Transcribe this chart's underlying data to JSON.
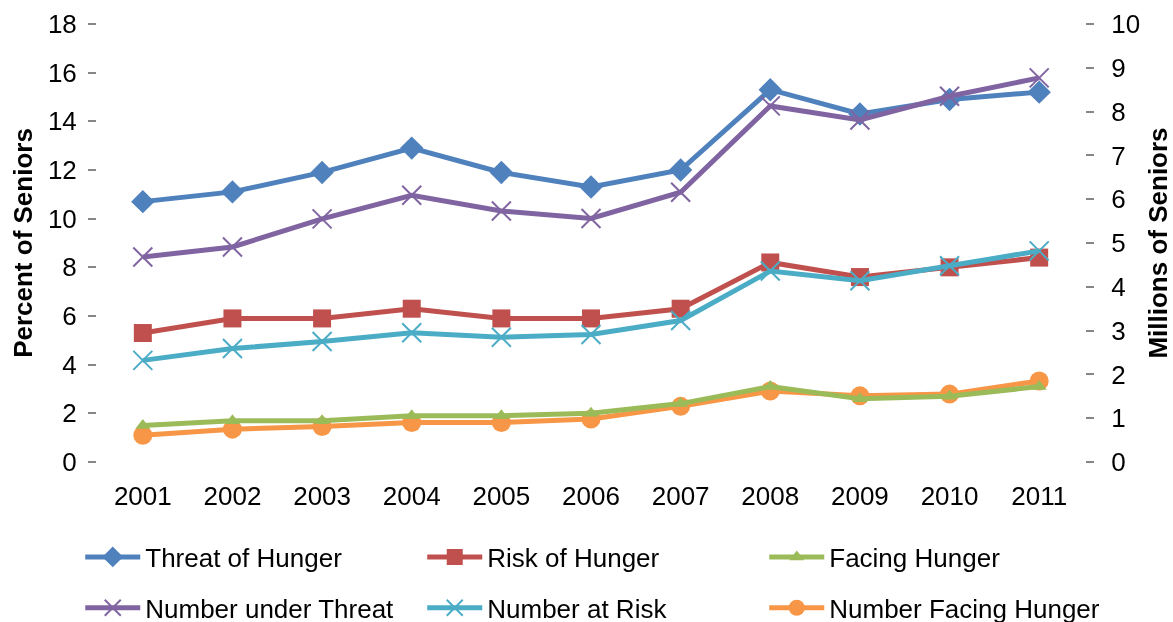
{
  "chart_data": {
    "type": "line",
    "ylabel": "Percent of Seniors",
    "y2label": "Millions of Seniors",
    "categories": [
      "2001",
      "2002",
      "2003",
      "2004",
      "2005",
      "2006",
      "2007",
      "2008",
      "2009",
      "2010",
      "2011"
    ],
    "ylim": [
      0,
      18
    ],
    "yticks": [
      0,
      2,
      4,
      6,
      8,
      10,
      12,
      14,
      16,
      18
    ],
    "y2lim": [
      0,
      10
    ],
    "y2ticks": [
      0,
      1,
      2,
      3,
      4,
      5,
      6,
      7,
      8,
      9,
      10
    ],
    "grid": false,
    "legend": "bottom",
    "line_style": "solid",
    "series": [
      {
        "name": "Threat of Hunger",
        "color": "#4f81bd",
        "marker": "diamond",
        "values": [
          10.7,
          11.1,
          11.9,
          12.9,
          11.9,
          11.3,
          12.0,
          15.3,
          14.3,
          14.9,
          15.2
        ]
      },
      {
        "name": "Risk of Hunger",
        "color": "#c0504d",
        "marker": "square",
        "values": [
          5.3,
          5.9,
          5.9,
          6.3,
          5.9,
          5.9,
          6.3,
          8.2,
          7.6,
          8.0,
          8.4
        ]
      },
      {
        "name": "Facing Hunger",
        "color": "#9bbb59",
        "marker": "triangle",
        "values": [
          1.5,
          1.7,
          1.7,
          1.9,
          1.9,
          2.0,
          2.4,
          3.1,
          2.6,
          2.7,
          3.1
        ]
      },
      {
        "name": "Number under Threat",
        "color": "#8064a2",
        "marker": "cross",
        "axis": "y2",
        "values": [
          4.68,
          4.91,
          5.55,
          6.09,
          5.73,
          5.56,
          6.16,
          8.13,
          7.81,
          8.35,
          8.77
        ]
      },
      {
        "name": "Number at Risk",
        "color": "#4bacc6",
        "marker": "cross",
        "axis": "y2",
        "values": [
          2.32,
          2.59,
          2.75,
          2.95,
          2.85,
          2.91,
          3.23,
          4.36,
          4.14,
          4.48,
          4.82
        ]
      },
      {
        "name": "Number Facing Hunger",
        "color": "#f79646",
        "marker": "circle",
        "axis": "y2",
        "values": [
          0.61,
          0.75,
          0.81,
          0.9,
          0.9,
          0.98,
          1.27,
          1.62,
          1.51,
          1.55,
          1.85
        ]
      }
    ]
  }
}
